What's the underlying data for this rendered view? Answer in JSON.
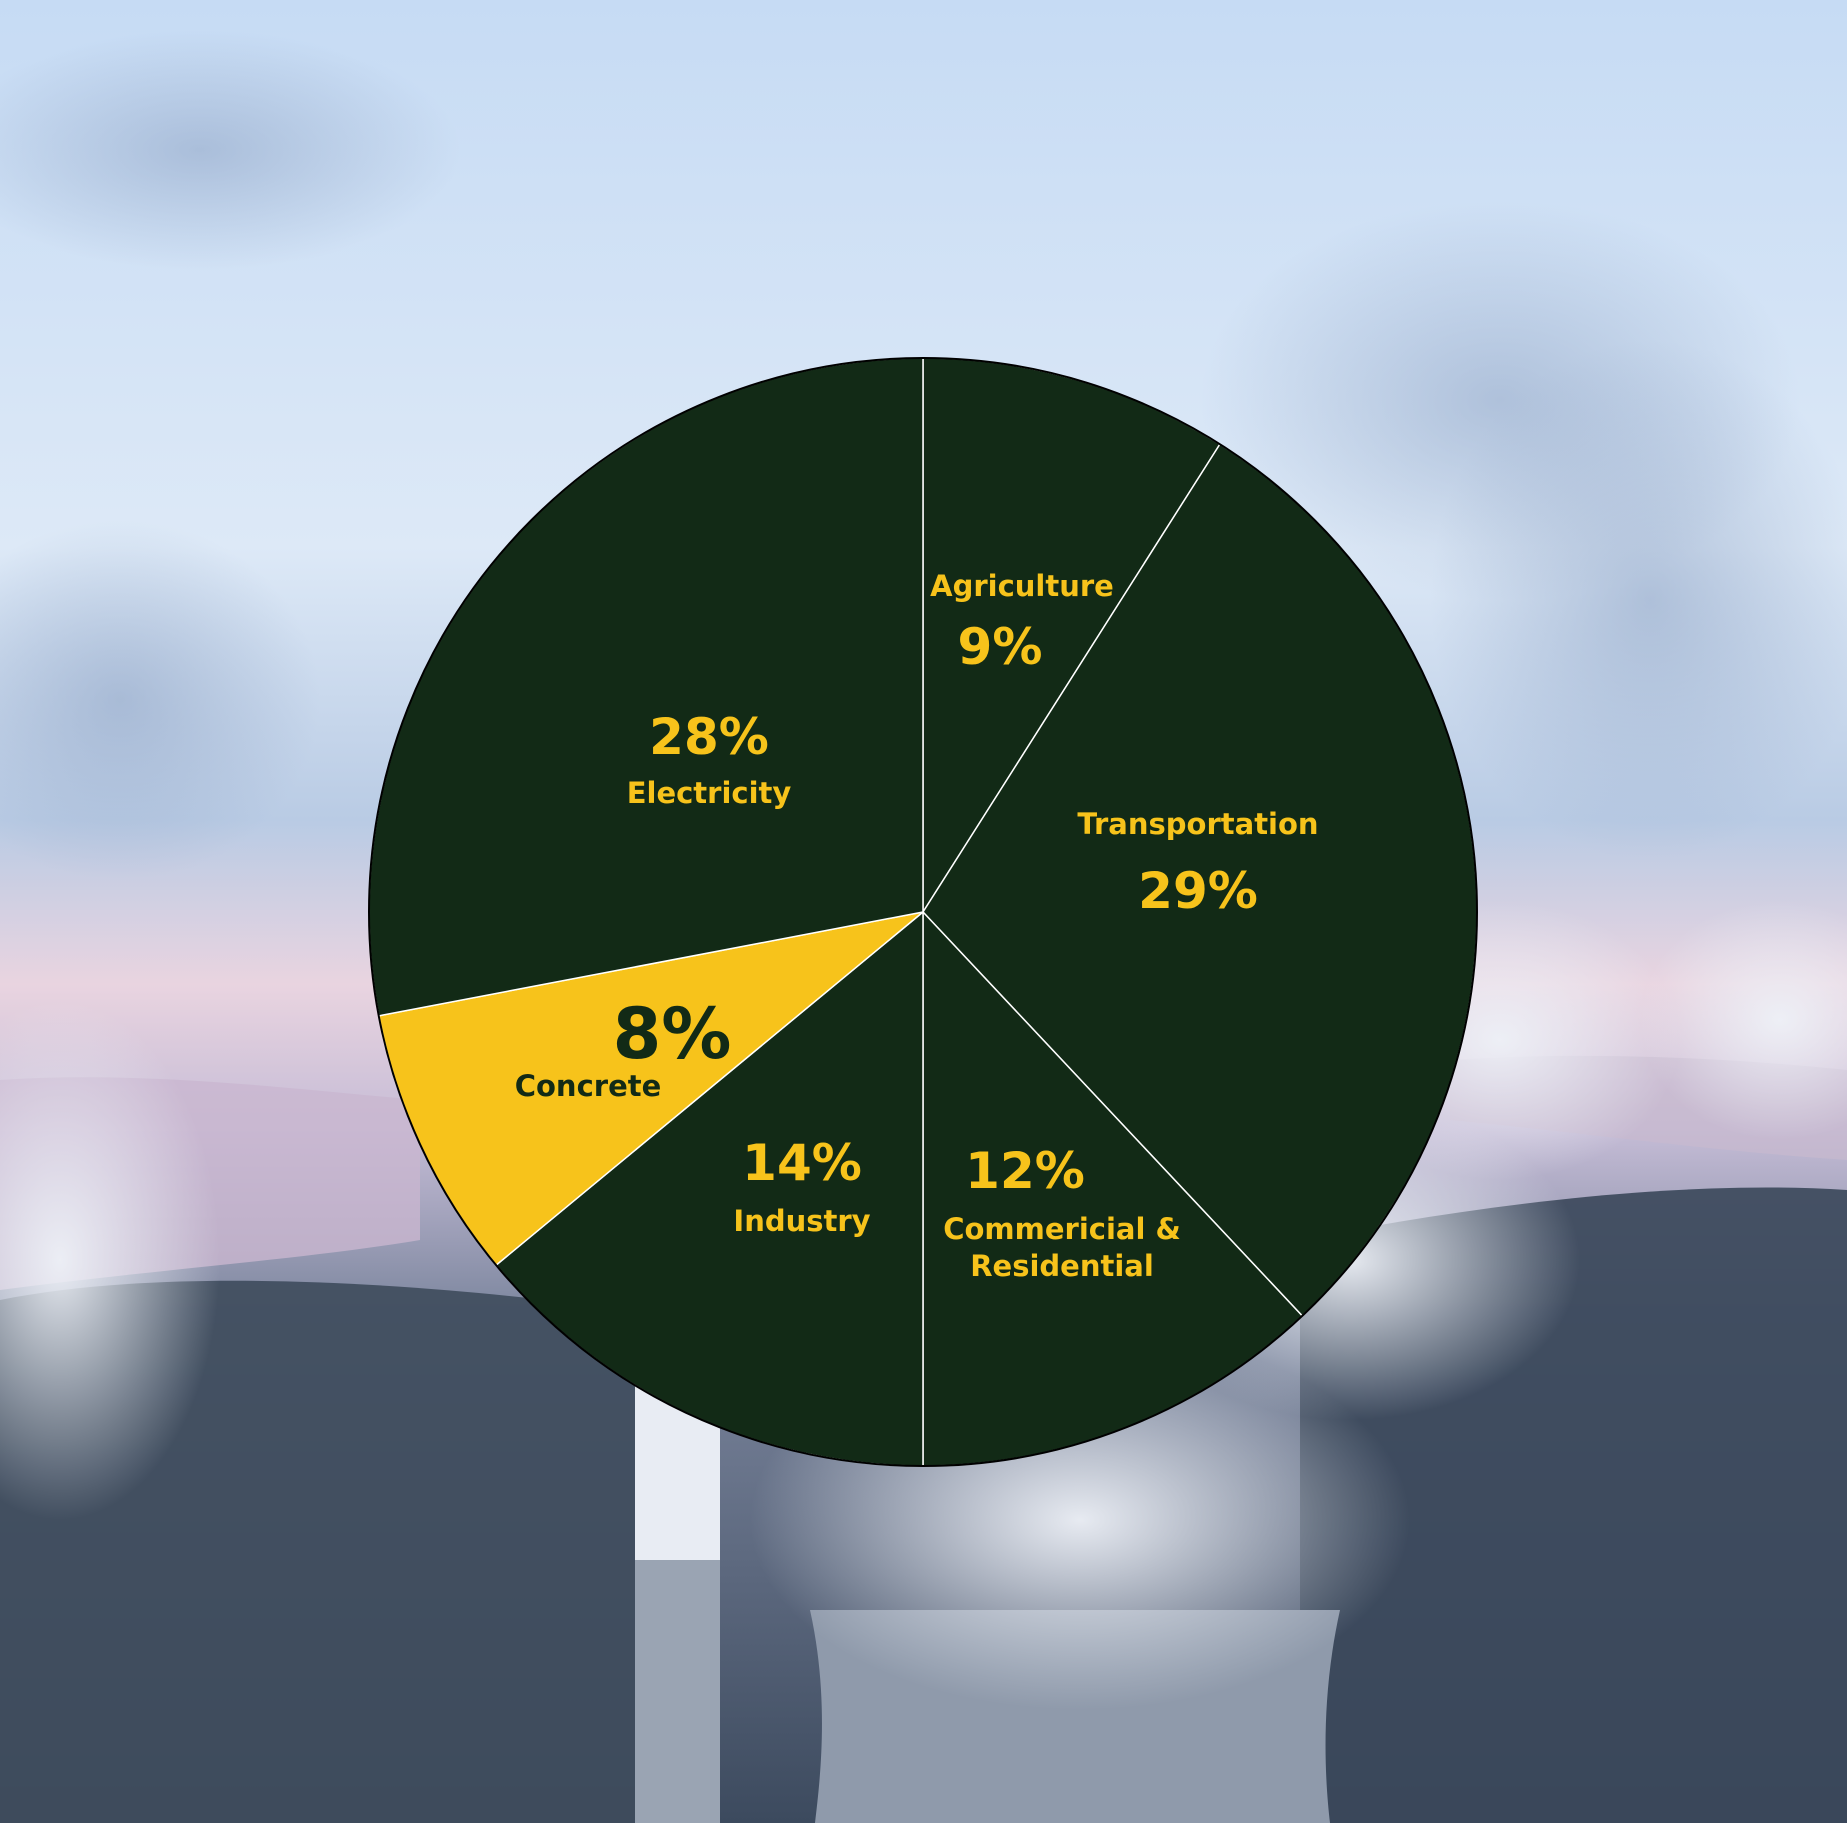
{
  "chart_data": {
    "type": "pie",
    "slices": [
      {
        "name": "Agriculture",
        "lines": [
          "Agriculture"
        ],
        "value": 9,
        "label": "9%",
        "color": "#122a16",
        "text_color": "#f7c31b"
      },
      {
        "name": "Transportation",
        "lines": [
          "Transportation"
        ],
        "value": 29,
        "label": "29%",
        "color": "#122a16",
        "text_color": "#f7c31b"
      },
      {
        "name": "Commericial & Residential",
        "lines": [
          "Commericial &",
          "Residential"
        ],
        "value": 12,
        "label": "12%",
        "color": "#122a16",
        "text_color": "#f7c31b"
      },
      {
        "name": "Industry",
        "lines": [
          "Industry"
        ],
        "value": 14,
        "label": "14%",
        "color": "#122a16",
        "text_color": "#f7c31b"
      },
      {
        "name": "Concrete",
        "lines": [
          "Concrete"
        ],
        "value": 8,
        "label": "8%",
        "color": "#f7c31b",
        "text_color": "#122a16"
      },
      {
        "name": "Electricity",
        "lines": [
          "Electricity"
        ],
        "value": 28,
        "label": "28%",
        "color": "#122a16",
        "text_color": "#f7c31b"
      }
    ],
    "start_angle": "12 o'clock",
    "direction": "clockwise",
    "separator_color": "#ffffff",
    "legend": "none"
  }
}
